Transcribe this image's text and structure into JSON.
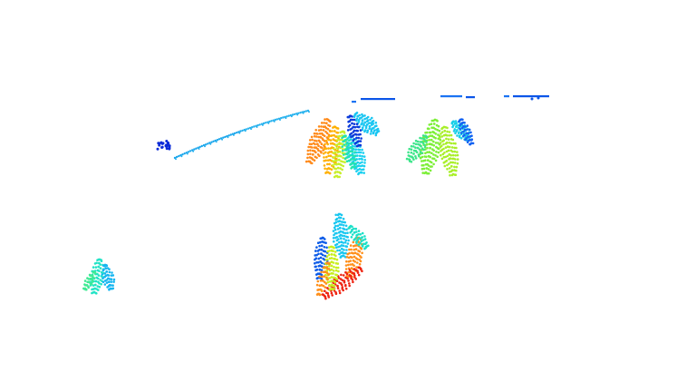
{
  "scene": {
    "background": "#ffffff",
    "colormap": [
      "#0a1acb",
      "#1b74f2",
      "#19c7f0",
      "#21e3c0",
      "#6fef42",
      "#c7ef1e",
      "#ffb01a",
      "#ff6a18",
      "#ee1b12"
    ],
    "objects": [
      {
        "name": "curved-trajectory-line",
        "palette": [
          "#1aa6ec",
          "#27b2ee",
          "#0b2bd8"
        ]
      },
      {
        "name": "dashed-line-top",
        "palette": [
          "#1a73f3",
          "#0b55e8"
        ]
      },
      {
        "name": "plant-cluster-1",
        "palette": [
          "#ff8a1a",
          "#ffb000",
          "#c8ef2a",
          "#1ad0f0",
          "#19c6f2",
          "#0b3bda",
          "#22e3b0"
        ]
      },
      {
        "name": "plant-cluster-2",
        "palette": [
          "#7cef37",
          "#a9ef2a",
          "#3ce58a",
          "#19cfe8",
          "#1563f2"
        ]
      },
      {
        "name": "plant-cluster-3",
        "palette": [
          "#19c7f0",
          "#0b5be8",
          "#ff8f1a",
          "#ee2412",
          "#c7ef1e",
          "#1be0c8"
        ]
      },
      {
        "name": "plant-cluster-small",
        "palette": [
          "#22e3c6",
          "#17b6f0",
          "#40ea94"
        ]
      }
    ]
  }
}
